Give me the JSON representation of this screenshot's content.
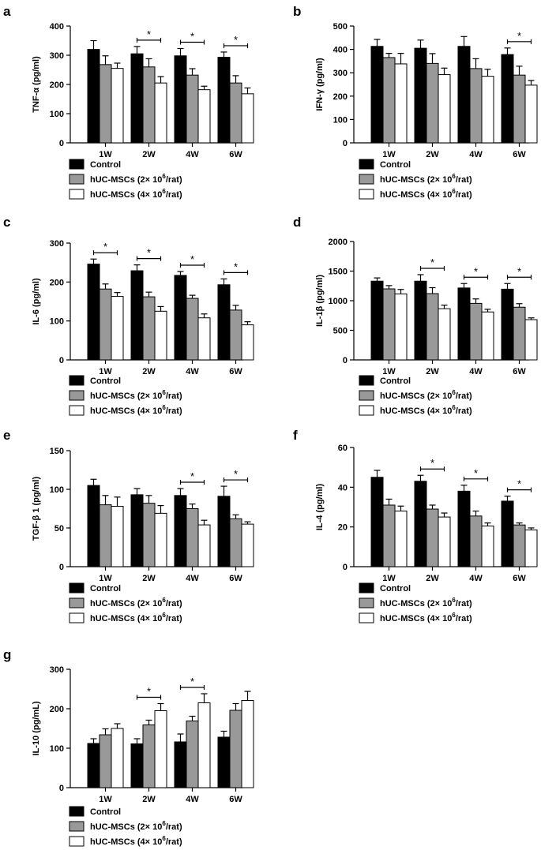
{
  "figure": {
    "x_categories": [
      "1W",
      "2W",
      "4W",
      "6W"
    ],
    "legend": [
      {
        "label": "Control",
        "sup": "",
        "tail": ""
      },
      {
        "label": "hUC-MSCs (2× 10",
        "sup": "6",
        "tail": "/rat)"
      },
      {
        "label": "hUC-MSCs (4× 10",
        "sup": "6",
        "tail": "/rat)"
      }
    ],
    "colors": {
      "control": "#000000",
      "low": "#999999",
      "high": "#ffffff"
    },
    "significance_marker": "*"
  },
  "chart_data": [
    {
      "panel": "a",
      "type": "bar",
      "title": "",
      "xlabel": "",
      "ylabel": "TNF-α  (pg/ml)",
      "categories": [
        "1W",
        "2W",
        "4W",
        "6W"
      ],
      "ylim": [
        0,
        400
      ],
      "yticks": [
        0,
        100,
        200,
        300,
        400
      ],
      "series": [
        {
          "name": "Control",
          "values": [
            320,
            305,
            298,
            293
          ],
          "errors": [
            30,
            25,
            25,
            18
          ]
        },
        {
          "name": "hUC-MSCs (2× 10^6/rat)",
          "values": [
            268,
            260,
            232,
            205
          ],
          "errors": [
            30,
            28,
            22,
            25
          ]
        },
        {
          "name": "hUC-MSCs (4× 10^6/rat)",
          "values": [
            255,
            205,
            182,
            168
          ],
          "errors": [
            18,
            22,
            12,
            20
          ]
        }
      ],
      "significance": [
        {
          "category": "2W",
          "label": "*"
        },
        {
          "category": "4W",
          "label": "*"
        },
        {
          "category": "6W",
          "label": "*"
        }
      ]
    },
    {
      "panel": "b",
      "type": "bar",
      "title": "",
      "xlabel": "",
      "ylabel": "IFN-γ  (pg/ml)",
      "categories": [
        "1W",
        "2W",
        "4W",
        "6W"
      ],
      "ylim": [
        0,
        500
      ],
      "yticks": [
        0,
        100,
        200,
        300,
        400,
        500
      ],
      "series": [
        {
          "name": "Control",
          "values": [
            413,
            405,
            413,
            378
          ],
          "errors": [
            30,
            35,
            42,
            28
          ]
        },
        {
          "name": "hUC-MSCs (2× 10^6/rat)",
          "values": [
            365,
            340,
            318,
            290
          ],
          "errors": [
            18,
            42,
            42,
            38
          ]
        },
        {
          "name": "hUC-MSCs (4× 10^6/rat)",
          "values": [
            338,
            292,
            285,
            247
          ],
          "errors": [
            45,
            28,
            30,
            20
          ]
        }
      ],
      "significance": [
        {
          "category": "6W",
          "label": "*"
        }
      ]
    },
    {
      "panel": "c",
      "type": "bar",
      "title": "",
      "xlabel": "",
      "ylabel": "IL-6  (pg/ml)",
      "categories": [
        "1W",
        "2W",
        "4W",
        "6W"
      ],
      "ylim": [
        0,
        300
      ],
      "yticks": [
        0,
        100,
        200,
        300
      ],
      "series": [
        {
          "name": "Control",
          "values": [
            246,
            229,
            217,
            193
          ],
          "errors": [
            13,
            15,
            10,
            15
          ]
        },
        {
          "name": "hUC-MSCs (2× 10^6/rat)",
          "values": [
            182,
            162,
            158,
            128
          ],
          "errors": [
            13,
            12,
            8,
            12
          ]
        },
        {
          "name": "hUC-MSCs (4× 10^6/rat)",
          "values": [
            163,
            125,
            108,
            90
          ],
          "errors": [
            10,
            12,
            10,
            8
          ]
        }
      ],
      "significance": [
        {
          "category": "1W",
          "label": "*"
        },
        {
          "category": "2W",
          "label": "*"
        },
        {
          "category": "4W",
          "label": "*"
        },
        {
          "category": "6W",
          "label": "*"
        }
      ]
    },
    {
      "panel": "d",
      "type": "bar",
      "title": "",
      "xlabel": "",
      "ylabel": "IL-1β  (pg/ml)",
      "categories": [
        "1W",
        "2W",
        "4W",
        "6W"
      ],
      "ylim": [
        0,
        2000
      ],
      "yticks": [
        0,
        500,
        1000,
        1500,
        2000
      ],
      "series": [
        {
          "name": "Control",
          "values": [
            1330,
            1330,
            1215,
            1195
          ],
          "errors": [
            55,
            110,
            75,
            95
          ]
        },
        {
          "name": "hUC-MSCs (2× 10^6/rat)",
          "values": [
            1200,
            1120,
            955,
            890
          ],
          "errors": [
            55,
            100,
            75,
            60
          ]
        },
        {
          "name": "hUC-MSCs (4× 10^6/rat)",
          "values": [
            1115,
            865,
            810,
            680
          ],
          "errors": [
            75,
            60,
            45,
            30
          ]
        }
      ],
      "significance": [
        {
          "category": "2W",
          "label": "*"
        },
        {
          "category": "4W",
          "label": "*"
        },
        {
          "category": "6W",
          "label": "*"
        }
      ]
    },
    {
      "panel": "e",
      "type": "bar",
      "title": "",
      "xlabel": "",
      "ylabel": "TGF-β 1  (pg/ml)",
      "categories": [
        "1W",
        "2W",
        "4W",
        "6W"
      ],
      "ylim": [
        0,
        150
      ],
      "yticks": [
        0,
        50,
        100,
        150
      ],
      "series": [
        {
          "name": "Control",
          "values": [
            105,
            93,
            92,
            91
          ],
          "errors": [
            8,
            8,
            9,
            13
          ]
        },
        {
          "name": "hUC-MSCs (2× 10^6/rat)",
          "values": [
            80,
            82,
            75,
            62
          ],
          "errors": [
            12,
            10,
            6,
            5
          ]
        },
        {
          "name": "hUC-MSCs (4× 10^6/rat)",
          "values": [
            78,
            69,
            54,
            55
          ],
          "errors": [
            12,
            10,
            6,
            3
          ]
        }
      ],
      "significance": [
        {
          "category": "4W",
          "label": "*"
        },
        {
          "category": "6W",
          "label": "*"
        }
      ]
    },
    {
      "panel": "f",
      "type": "bar",
      "title": "",
      "xlabel": "",
      "ylabel": "IL-4  (pg/ml)",
      "categories": [
        "1W",
        "2W",
        "4W",
        "6W"
      ],
      "ylim": [
        0,
        60
      ],
      "yticks": [
        0,
        20,
        40,
        60
      ],
      "series": [
        {
          "name": "Control",
          "values": [
            45,
            43,
            38,
            33
          ],
          "errors": [
            3.5,
            3,
            3,
            2.5
          ]
        },
        {
          "name": "hUC-MSCs (2× 10^6/rat)",
          "values": [
            31,
            29,
            25.5,
            21
          ],
          "errors": [
            3,
            2,
            2.5,
            1
          ]
        },
        {
          "name": "hUC-MSCs (4× 10^6/rat)",
          "values": [
            28,
            25,
            20.5,
            18.5
          ],
          "errors": [
            2.5,
            2,
            1.5,
            1
          ]
        }
      ],
      "significance": [
        {
          "category": "2W",
          "label": "*"
        },
        {
          "category": "4W",
          "label": "*"
        },
        {
          "category": "6W",
          "label": "*"
        }
      ]
    },
    {
      "panel": "g",
      "type": "bar",
      "title": "",
      "xlabel": "",
      "ylabel": "IL-10 (pg/mL)",
      "categories": [
        "1W",
        "2W",
        "4W",
        "6W"
      ],
      "ylim": [
        0,
        300
      ],
      "yticks": [
        0,
        100,
        200,
        300
      ],
      "series": [
        {
          "name": "Control",
          "values": [
            112,
            111,
            116,
            128
          ],
          "errors": [
            12,
            13,
            20,
            15
          ]
        },
        {
          "name": "hUC-MSCs (2× 10^6/rat)",
          "values": [
            134,
            159,
            169,
            196
          ],
          "errors": [
            15,
            12,
            12,
            17
          ]
        },
        {
          "name": "hUC-MSCs (4× 10^6/rat)",
          "values": [
            150,
            195,
            215,
            221
          ],
          "errors": [
            12,
            18,
            23,
            23
          ]
        }
      ],
      "significance": [
        {
          "category": "2W",
          "label": "*"
        },
        {
          "category": "4W",
          "label": "*"
        }
      ]
    }
  ]
}
